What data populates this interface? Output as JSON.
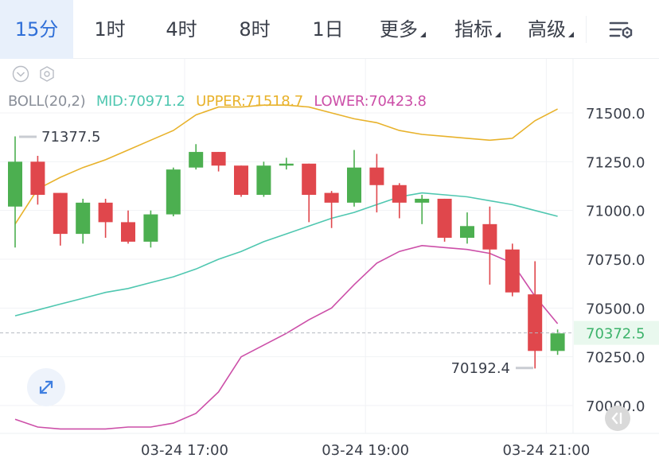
{
  "tabs": [
    {
      "label": "15分",
      "active": true
    },
    {
      "label": "1时"
    },
    {
      "label": "4时"
    },
    {
      "label": "8时"
    },
    {
      "label": "1日"
    },
    {
      "label": "更多",
      "dropdown": true
    },
    {
      "label": "指标",
      "dropdown": true
    },
    {
      "label": "高级",
      "dropdown": true
    }
  ],
  "icons": {
    "settings": "kline-settings-icon",
    "toggle": "collapse-toggle-icon",
    "indicator_settings": "hexagon-settings-icon",
    "expand": "expand-arrows-icon",
    "reset": "scroll-to-latest-icon"
  },
  "colors": {
    "up": "#4caf50",
    "down": "#e0474c",
    "mid": "#4fc7b0",
    "upper": "#e8b22b",
    "lower": "#cc4fa8",
    "accent": "#2f6fd8",
    "current_price_bg": "#e9f8ee",
    "current_price_text": "#3db36b"
  },
  "boll": {
    "label": "BOLL(20,2)",
    "mid": "MID:70971.2",
    "upper": "UPPER:71518.7",
    "lower": "LOWER:70423.8"
  },
  "chart_data": {
    "type": "candlestick",
    "y_ticks": [
      71500.0,
      71250.0,
      71000.0,
      70750.0,
      70500.0,
      70250.0,
      70000.0
    ],
    "y_tick_labels": [
      "71500.0",
      "71250.0",
      "71000.0",
      "70750.0",
      "70500.0",
      "70250.0",
      "70000.0"
    ],
    "ylim": [
      69890,
      71680
    ],
    "x_labels": [
      {
        "index": 7.5,
        "text": "03-24 17:00"
      },
      {
        "index": 15.5,
        "text": "03-24 19:00"
      },
      {
        "index": 23.5,
        "text": "03-24 21:00"
      }
    ],
    "candles": [
      {
        "o": 71020,
        "c": 71250,
        "h": 71380,
        "l": 70810
      },
      {
        "o": 71250,
        "c": 71080,
        "h": 71280,
        "l": 71030
      },
      {
        "o": 71090,
        "c": 70880,
        "h": 71090,
        "l": 70820
      },
      {
        "o": 70880,
        "c": 71040,
        "h": 71060,
        "l": 70830
      },
      {
        "o": 71040,
        "c": 70940,
        "h": 71060,
        "l": 70860
      },
      {
        "o": 70940,
        "c": 70840,
        "h": 71000,
        "l": 70830
      },
      {
        "o": 70840,
        "c": 70980,
        "h": 71000,
        "l": 70810
      },
      {
        "o": 70980,
        "c": 71210,
        "h": 71220,
        "l": 70970
      },
      {
        "o": 71220,
        "c": 71300,
        "h": 71340,
        "l": 71210
      },
      {
        "o": 71300,
        "c": 71230,
        "h": 71300,
        "l": 71200
      },
      {
        "o": 71230,
        "c": 71080,
        "h": 71230,
        "l": 71070
      },
      {
        "o": 71080,
        "c": 71230,
        "h": 71250,
        "l": 71070
      },
      {
        "o": 71230,
        "c": 71240,
        "h": 71270,
        "l": 71210
      },
      {
        "o": 71240,
        "c": 71080,
        "h": 71240,
        "l": 70940
      },
      {
        "o": 71090,
        "c": 71040,
        "h": 71100,
        "l": 70910
      },
      {
        "o": 71040,
        "c": 71220,
        "h": 71310,
        "l": 71020
      },
      {
        "o": 71220,
        "c": 71130,
        "h": 71290,
        "l": 70990
      },
      {
        "o": 71130,
        "c": 71040,
        "h": 71140,
        "l": 70960
      },
      {
        "o": 71040,
        "c": 71060,
        "h": 71080,
        "l": 70930
      },
      {
        "o": 71060,
        "c": 70860,
        "h": 71060,
        "l": 70840
      },
      {
        "o": 70860,
        "c": 70920,
        "h": 70990,
        "l": 70830
      },
      {
        "o": 70930,
        "c": 70800,
        "h": 71020,
        "l": 70620
      },
      {
        "o": 70800,
        "c": 70580,
        "h": 70830,
        "l": 70560
      },
      {
        "o": 70570,
        "c": 70280,
        "h": 70740,
        "l": 70190
      },
      {
        "o": 70280,
        "c": 70370,
        "h": 70390,
        "l": 70260
      }
    ],
    "upper_band": [
      70930,
      71110,
      71170,
      71220,
      71260,
      71310,
      71360,
      71410,
      71490,
      71530,
      71530,
      71540,
      71540,
      71530,
      71500,
      71470,
      71450,
      71410,
      71390,
      71380,
      71370,
      71360,
      71370,
      71460,
      71520
    ],
    "mid_band": [
      70460,
      70490,
      70520,
      70550,
      70580,
      70600,
      70630,
      70660,
      70700,
      70750,
      70790,
      70840,
      70880,
      70920,
      70960,
      70990,
      71030,
      71070,
      71090,
      71080,
      71070,
      71050,
      71030,
      71000,
      70970
    ],
    "lower_band": [
      69930,
      69890,
      69880,
      69880,
      69880,
      69890,
      69890,
      69910,
      69960,
      70070,
      70250,
      70310,
      70370,
      70440,
      70500,
      70620,
      70730,
      70790,
      70820,
      70810,
      70800,
      70780,
      70730,
      70560,
      70420
    ],
    "annotations": {
      "max_label": "71377.5",
      "max_value": 71377.5,
      "min_label": "70192.4",
      "min_value": 70192.4
    },
    "current_price": {
      "label": "70372.5",
      "value": 70372.5
    },
    "grid": true
  }
}
